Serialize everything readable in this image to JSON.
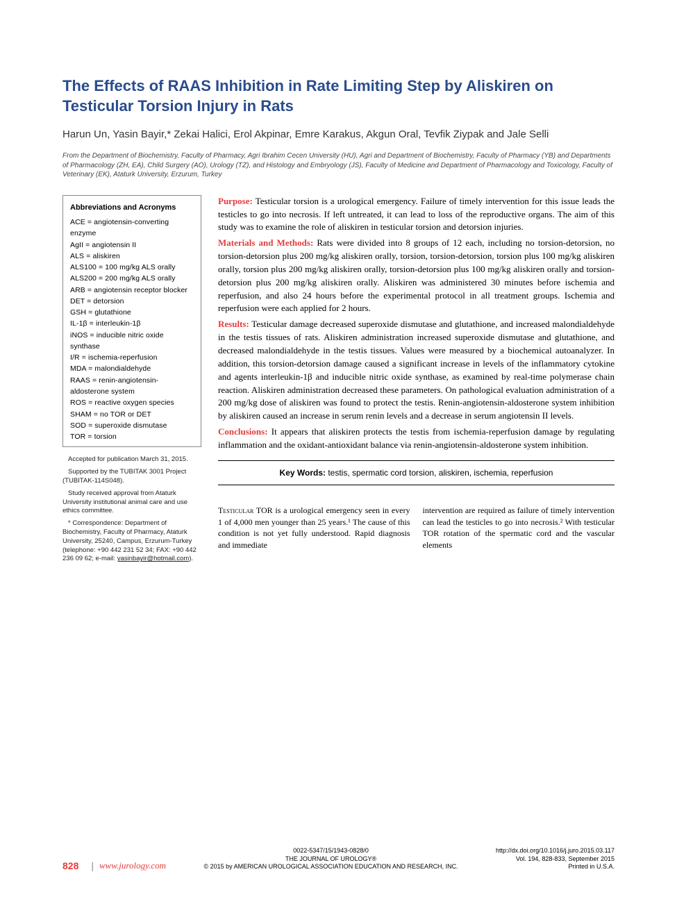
{
  "title": "The Effects of RAAS Inhibition in Rate Limiting Step by Aliskiren on Testicular Torsion Injury in Rats",
  "authors": "Harun Un, Yasin Bayir,* Zekai Halici, Erol Akpinar, Emre Karakus, Akgun Oral, Tevfik Ziypak and Jale Selli",
  "affiliations": "From the Department of Biochemistry, Faculty of Pharmacy, Agri Ibrahim Cecen University (HU), Agri and Department of Biochemistry, Faculty of Pharmacy (YB) and Departments of Pharmacology (ZH, EA), Child Surgery (AO), Urology (TZ), and Histology and Embryology (JS), Faculty of Medicine and Department of Pharmacology and Toxicology, Faculty of Veterinary (EK), Ataturk University, Erzurum, Turkey",
  "abbrev": {
    "title": "Abbreviations and Acronyms",
    "items": [
      "ACE = angiotensin-converting enzyme",
      "AgII = angiotensin II",
      "ALS = aliskiren",
      "ALS100 = 100 mg/kg ALS orally",
      "ALS200 = 200 mg/kg ALS orally",
      "ARB = angiotensin receptor blocker",
      "DET = detorsion",
      "GSH = glutathione",
      "IL-1β = interleukin-1β",
      "iNOS = inducible nitric oxide synthase",
      "I/R = ischemia-reperfusion",
      "MDA = malondialdehyde",
      "RAAS = renin-angiotensin-aldosterone system",
      "ROS = reactive oxygen species",
      "SHAM = no TOR or DET",
      "SOD = superoxide dismutase",
      "TOR = torsion"
    ]
  },
  "footnotes": {
    "accepted": "Accepted for publication March 31, 2015.",
    "supported": "Supported by the TUBITAK 3001 Project (TUBITAK-114S048).",
    "approval": "Study received approval from Ataturk University institutional animal care and use ethics committee.",
    "correspondence": "* Correspondence: Department of Biochemistry, Faculty of Pharmacy, Ataturk University, 25240, Campus, Erzurum-Turkey (telephone: +90 442 231 52 34; FAX: +90 442 236 09 62; e-mail: ",
    "email": "yasinbayir@hotmail.com",
    "corr_end": ")."
  },
  "abstract": {
    "purpose_label": "Purpose:",
    "purpose": " Testicular torsion is a urological emergency. Failure of timely intervention for this issue leads the testicles to go into necrosis. If left untreated, it can lead to loss of the reproductive organs. The aim of this study was to examine the role of aliskiren in testicular torsion and detorsion injuries.",
    "methods_label": "Materials and Methods:",
    "methods": " Rats were divided into 8 groups of 12 each, including no torsion-detorsion, no torsion-detorsion plus 200 mg/kg aliskiren orally, torsion, torsion-detorsion, torsion plus 100 mg/kg aliskiren orally, torsion plus 200 mg/kg aliskiren orally, torsion-detorsion plus 100 mg/kg aliskiren orally and torsion-detorsion plus 200 mg/kg aliskiren orally. Aliskiren was administered 30 minutes before ischemia and reperfusion, and also 24 hours before the experimental protocol in all treatment groups. Ischemia and reperfusion were each applied for 2 hours.",
    "results_label": "Results:",
    "results": " Testicular damage decreased superoxide dismutase and glutathione, and increased malondialdehyde in the testis tissues of rats. Aliskiren administration increased superoxide dismutase and glutathione, and decreased malondialdehyde in the testis tissues. Values were measured by a biochemical autoanalyzer. In addition, this torsion-detorsion damage caused a significant increase in levels of the inflammatory cytokine and agents interleukin-1β and inducible nitric oxide synthase, as examined by real-time polymerase chain reaction. Aliskiren administration decreased these parameters. On pathological evaluation administration of a 200 mg/kg dose of aliskiren was found to protect the testis. Renin-angiotensin-aldosterone system inhibition by aliskiren caused an increase in serum renin levels and a decrease in serum angiotensin II levels.",
    "conclusions_label": "Conclusions:",
    "conclusions": " It appears that aliskiren protects the testis from ischemia-reperfusion damage by regulating inflammation and the oxidant-antioxidant balance via renin-angiotensin-aldosterone system inhibition."
  },
  "keywords": {
    "label": "Key Words:",
    "text": " testis, spermatic cord torsion, aliskiren, ischemia, reperfusion"
  },
  "body": {
    "col1_lead": "Testicular",
    "col1": " TOR is a urological emergency seen in every 1 of 4,000 men younger than 25 years.¹ The cause of this condition is not yet fully understood. Rapid diagnosis and immediate",
    "col2": "intervention are required as failure of timely intervention can lead the testicles to go into necrosis.² With testicular TOR rotation of the spermatic cord and the vascular elements"
  },
  "footer": {
    "page": "828",
    "url": "www.jurology.com",
    "center_line1": "0022-5347/15/1943-0828/0",
    "center_line2": "THE JOURNAL OF UROLOGY®",
    "center_line3": "© 2015 by AMERICAN UROLOGICAL ASSOCIATION EDUCATION AND RESEARCH, INC.",
    "right_line1": "http://dx.doi.org/10.1016/j.juro.2015.03.117",
    "right_line2": "Vol. 194, 828-833, September 2015",
    "right_line3": "Printed in U.S.A."
  },
  "colors": {
    "title_color": "#2a4c8d",
    "accent_red": "#e63b3b",
    "text": "#000000",
    "border": "#888888",
    "background": "#ffffff"
  }
}
